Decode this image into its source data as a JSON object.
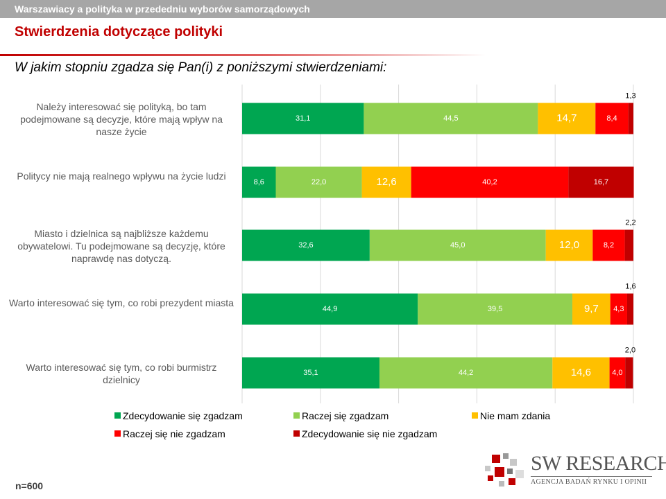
{
  "header": {
    "topbar_title": "Warszawiacy a polityka w przededniu wyborów samorządowych",
    "section_title": "Stwierdzenia dotyczące polityki",
    "question": "W jakim stopniu zgadza się Pan(i) z poniższymi stwierdzeniami:"
  },
  "rows": [
    {
      "label": "Należy interesować się polityką, bo tam podejmowane są decyzje, które mają wpływ na nasze życie"
    },
    {
      "label": "Politycy nie mają realnego wpływu na życie ludzi"
    },
    {
      "label": "Miasto i dzielnica są najbliższe każdemu obywatelowi. Tu podejmowane są decyzję, które naprawdę nas dotyczą."
    },
    {
      "label": "Warto interesować się tym, co robi prezydent miasta"
    },
    {
      "label": "Warto interesować się tym, co robi burmistrz dzielnicy"
    }
  ],
  "chart_data": {
    "type": "bar",
    "orientation": "horizontal",
    "stacked": true,
    "categories": [
      "Należy interesować się polityką, bo tam podejmowane są decyzje, które mają wpływ na nasze życie",
      "Politycy nie mają realnego wpływu na życie ludzi",
      "Miasto i dzielnica są najbliższe każdemu obywatelowi. Tu podejmowane są decyzję, które naprawdę nas dotyczą.",
      "Warto interesować się tym, co robi prezydent miasta",
      "Warto interesować się tym, co robi burmistrz dzielnicy"
    ],
    "series": [
      {
        "name": "Zdecydowanie się zgadzam",
        "color": "#00a651",
        "values": [
          31.1,
          8.6,
          32.6,
          44.9,
          35.1
        ],
        "labels": [
          "31,1",
          "8,6",
          "32,6",
          "44,9",
          "35,1"
        ]
      },
      {
        "name": "Raczej się zgadzam",
        "color": "#92d050",
        "values": [
          44.5,
          22.0,
          45.0,
          39.5,
          44.2
        ],
        "labels": [
          "44,5",
          "22,0",
          "45,0",
          "39,5",
          "44,2"
        ]
      },
      {
        "name": "Nie mam zdania",
        "color": "#ffc000",
        "values": [
          14.7,
          12.6,
          12.0,
          9.7,
          14.6
        ],
        "labels": [
          "14,7",
          "12,6",
          "12,0",
          "9,7",
          "14,6"
        ]
      },
      {
        "name": "Raczej się nie zgadzam",
        "color": "#ff0000",
        "values": [
          8.4,
          40.2,
          8.2,
          4.3,
          4.0
        ],
        "labels": [
          "8,4",
          "40,2",
          "8,2",
          "4,3",
          "4,0"
        ]
      },
      {
        "name": "Zdecydowanie się nie zgadzam",
        "color": "#c00000",
        "values": [
          1.3,
          16.7,
          2.2,
          1.6,
          2.0
        ],
        "labels": [
          "1,3",
          "16,7",
          "2,2",
          "1,6",
          "2,0"
        ]
      }
    ],
    "xlim": [
      0,
      100
    ],
    "grid": true,
    "legend_position": "bottom"
  },
  "logo": {
    "main": "SW RESEARCH",
    "sub": "AGENCJA BADAŃ RYNKU I OPINII"
  },
  "footnote": "n=600"
}
